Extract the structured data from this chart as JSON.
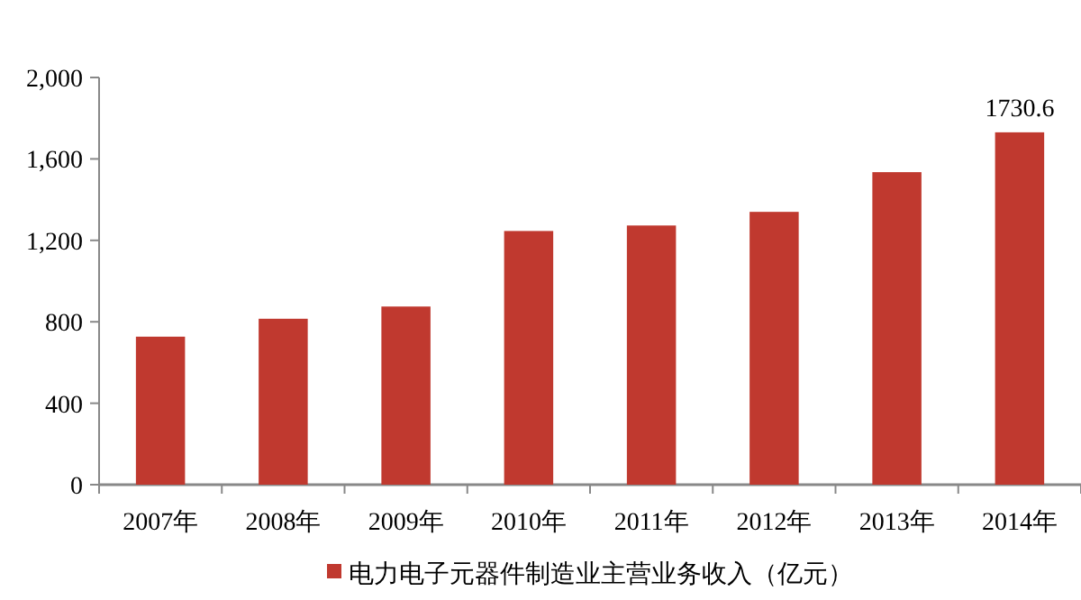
{
  "chart_data": {
    "type": "bar",
    "categories": [
      "2007年",
      "2008年",
      "2009年",
      "2010年",
      "2011年",
      "2012年",
      "2013年",
      "2014年"
    ],
    "series": [
      {
        "name": "电力电子元器件制造业主营业务收入（亿元）",
        "color": "#c0392f",
        "values": [
          727,
          815,
          875,
          1246,
          1273,
          1340,
          1535,
          1730.6
        ],
        "value_labels": [
          null,
          null,
          null,
          null,
          null,
          null,
          null,
          "1730.6"
        ]
      }
    ],
    "ylim": [
      0,
      2000
    ],
    "yticks": [
      {
        "value": 0,
        "label": "0"
      },
      {
        "value": 400,
        "label": "400"
      },
      {
        "value": 800,
        "label": "800"
      },
      {
        "value": 1200,
        "label": "1,200"
      },
      {
        "value": 1600,
        "label": "1,600"
      },
      {
        "value": 2000,
        "label": "2,000"
      }
    ],
    "grid": false,
    "legend": "bottom"
  }
}
